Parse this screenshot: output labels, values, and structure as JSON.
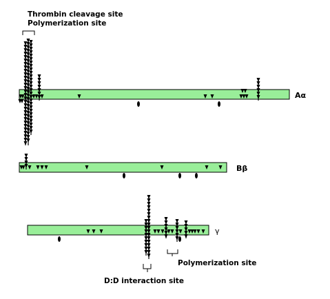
{
  "labels": {
    "thrombin_cleavage": "Thrombin cleavage site",
    "polymerization_top": "Polymerization site",
    "polymerization_bottom": "Polymerization site",
    "dd_interaction": "D:D interaction site"
  },
  "chains": [
    {
      "id": "a-alpha",
      "name_prefix": "A",
      "name_greek": "α"
    },
    {
      "id": "b-beta",
      "name_prefix": "B",
      "name_greek": "β"
    },
    {
      "id": "gamma",
      "name_prefix": "",
      "name_greek": "γ"
    }
  ],
  "colors": {
    "bar_fill": "#99ee99",
    "marker": "#000000"
  }
}
